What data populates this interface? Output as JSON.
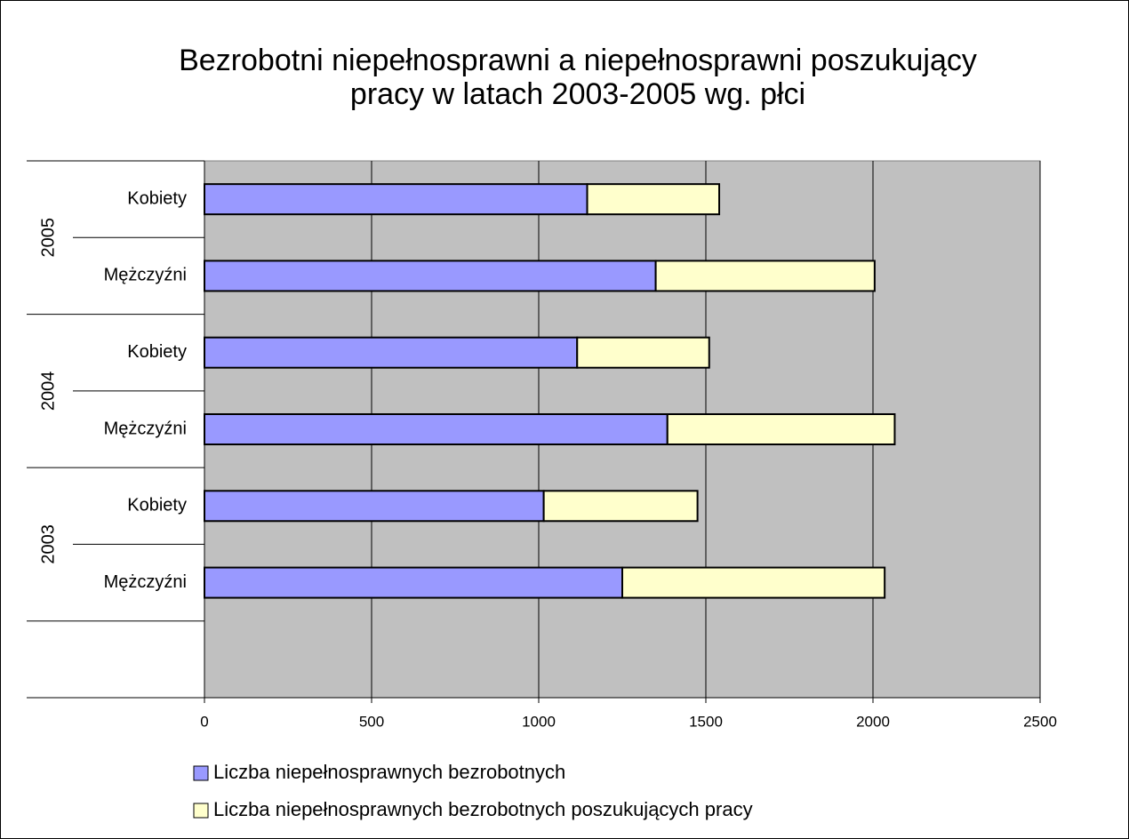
{
  "chart_data": {
    "type": "stacked-bar-horizontal",
    "title": "Bezrobotni niepełnosprawni a niepełnosprawni poszukujący\npracy w latach 2003-2005 wg. płci",
    "groups": [
      {
        "label": "2005",
        "categories": [
          "Kobiety",
          "Mężczyźni"
        ]
      },
      {
        "label": "2004",
        "categories": [
          "Kobiety",
          "Mężczyźni"
        ]
      },
      {
        "label": "2003",
        "categories": [
          "Kobiety",
          "Mężczyźni"
        ]
      },
      {
        "label": null,
        "categories": [
          null
        ]
      }
    ],
    "series": [
      {
        "name": "Liczba niepełnosprawnych bezrobotnych",
        "color": "#9999ff",
        "values": [
          1145,
          1350,
          1115,
          1385,
          1015,
          1250,
          null
        ]
      },
      {
        "name": "Liczba niepełnosprawnych bezrobotnych poszukujących pracy",
        "color": "#ffffcc",
        "values": [
          395,
          655,
          395,
          680,
          460,
          785,
          null
        ]
      }
    ],
    "xlim": [
      0,
      2500
    ],
    "xticks": [
      0,
      500,
      1000,
      1500,
      2000,
      2500
    ],
    "grid": true,
    "plot_background": "#c0c0c0",
    "legend": "bottom-left"
  }
}
